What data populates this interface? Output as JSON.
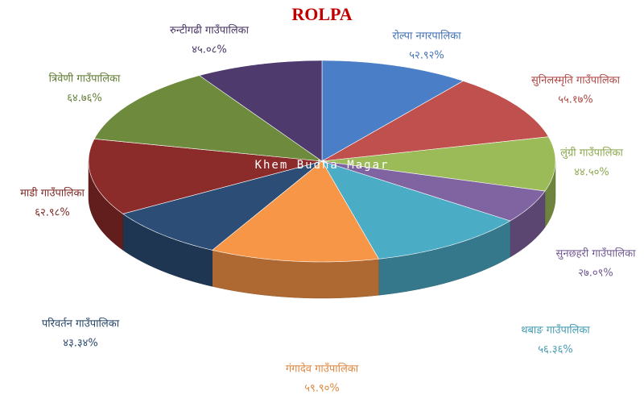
{
  "chart_data": {
    "type": "pie",
    "title": "ROLPA",
    "annotation": "Khem Budha Magar",
    "categories": [
      "रोल्पा नगरपालिका",
      "सुनिलस्मृति गाउँपालिका",
      "लुंग्री गाउँपालिका",
      "सुनछहरी गाउँपालिका",
      "थबाङ गाउँपालिका",
      "गंगादेव गाउँपालिका",
      "परिवर्तन गाउँपालिका",
      "माडी गाउँपालिका",
      "त्रिवेणी गाउँपालिका",
      "रुन्टीगढी गाउँपालिका"
    ],
    "values": [
      52.92,
      55.17,
      44.5,
      27.09,
      56.36,
      59.9,
      43.34,
      62.98,
      64.76,
      45.08
    ],
    "value_labels": [
      "५२.९२%",
      "५५.१७%",
      "४४.५०%",
      "२७.०९%",
      "५६.३६%",
      "५९.९०%",
      "४३.३४%",
      "६२.९८%",
      "६४.७६%",
      "४५.०८%"
    ],
    "colors": [
      "#4a7fc8",
      "#c0504d",
      "#9bbb59",
      "#8064a2",
      "#4bacc6",
      "#f79646",
      "#2c4d75",
      "#8b2b2a",
      "#6e8b3d",
      "#4f3a6e"
    ]
  }
}
